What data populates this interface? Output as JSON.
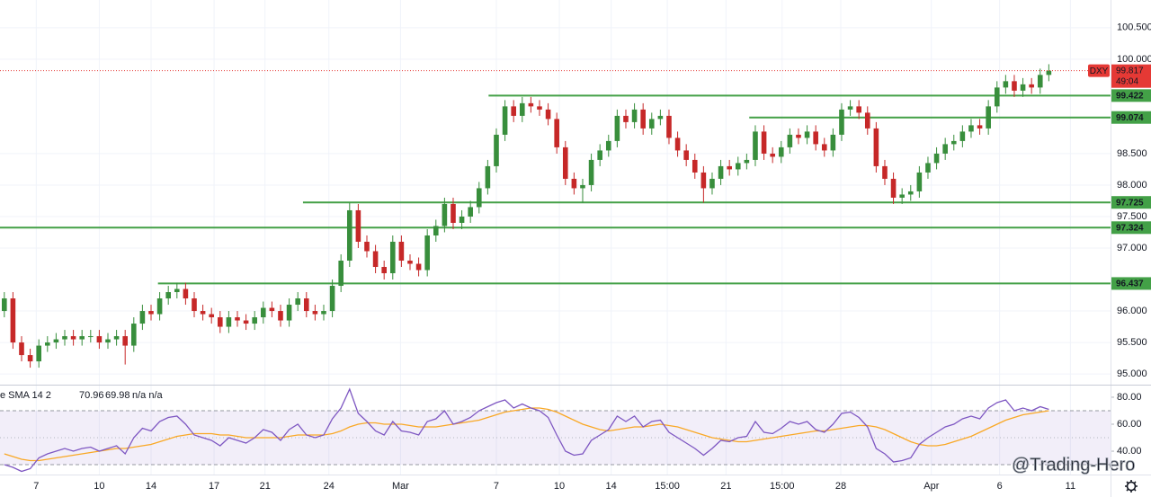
{
  "chart_data": {
    "type": "candlestick",
    "symbol": "DXY",
    "countdown": "49:04",
    "watermark": "@Trading-Hero",
    "up_color": "#388e3c",
    "down_color": "#c62828",
    "open": [
      96.0,
      96.2,
      95.5,
      95.3,
      95.2,
      95.45,
      95.5,
      95.55,
      95.6,
      95.55,
      95.6,
      95.6,
      95.5,
      95.55,
      95.6,
      95.45,
      95.8,
      96.0,
      95.95,
      96.2,
      96.3,
      96.35,
      96.2,
      96.0,
      95.95,
      95.9,
      95.75,
      95.9,
      95.85,
      95.8,
      95.9,
      96.05,
      96.0,
      95.85,
      96.1,
      96.2,
      96.0,
      95.95,
      96.0,
      96.4,
      96.8,
      97.6,
      97.1,
      96.95,
      96.7,
      96.6,
      97.1,
      96.8,
      96.75,
      96.65,
      97.2,
      97.35,
      97.7,
      97.4,
      97.5,
      97.65,
      97.95,
      98.3,
      98.8,
      99.25,
      99.1,
      99.3,
      99.25,
      99.2,
      99.05,
      98.6,
      98.1,
      97.95,
      98.0,
      98.4,
      98.55,
      98.7,
      99.1,
      99.0,
      99.2,
      98.9,
      99.05,
      99.1,
      98.75,
      98.55,
      98.4,
      98.2,
      97.95,
      98.1,
      98.3,
      98.25,
      98.35,
      98.4,
      98.85,
      98.5,
      98.45,
      98.6,
      98.8,
      98.75,
      98.85,
      98.65,
      98.55,
      98.8,
      99.2,
      99.25,
      99.15,
      98.9,
      98.3,
      98.1,
      97.8,
      97.85,
      97.9,
      98.2,
      98.35,
      98.5,
      98.65,
      98.7,
      98.85,
      98.95,
      98.9,
      99.25,
      99.55,
      99.65,
      99.5,
      99.6,
      99.55,
      99.75
    ],
    "high": [
      96.3,
      96.3,
      95.6,
      95.4,
      95.55,
      95.6,
      95.65,
      95.7,
      95.7,
      95.7,
      95.7,
      95.7,
      95.65,
      95.7,
      95.7,
      95.9,
      96.1,
      96.1,
      96.3,
      96.4,
      96.45,
      96.45,
      96.3,
      96.1,
      96.05,
      96.0,
      96.0,
      96.0,
      95.95,
      96.0,
      96.15,
      96.15,
      96.1,
      96.2,
      96.3,
      96.3,
      96.1,
      96.1,
      96.5,
      96.9,
      97.72,
      97.7,
      97.2,
      97.05,
      96.8,
      97.2,
      97.2,
      96.9,
      96.85,
      97.3,
      97.45,
      97.8,
      97.8,
      97.6,
      97.75,
      98.05,
      98.4,
      98.9,
      99.35,
      99.35,
      99.4,
      99.4,
      99.35,
      99.3,
      99.15,
      98.7,
      98.2,
      98.1,
      98.5,
      98.65,
      98.8,
      99.2,
      99.2,
      99.3,
      99.3,
      99.15,
      99.2,
      99.2,
      98.85,
      98.65,
      98.5,
      98.3,
      98.2,
      98.4,
      98.4,
      98.45,
      98.5,
      98.95,
      98.95,
      98.6,
      98.7,
      98.9,
      98.9,
      98.95,
      98.95,
      98.75,
      98.9,
      99.3,
      99.35,
      99.35,
      99.25,
      99.0,
      98.4,
      98.2,
      97.95,
      98.0,
      98.3,
      98.45,
      98.6,
      98.75,
      98.8,
      98.95,
      99.05,
      99.05,
      99.35,
      99.65,
      99.75,
      99.75,
      99.7,
      99.7,
      99.85,
      99.92
    ],
    "low": [
      95.9,
      95.4,
      95.2,
      95.1,
      95.1,
      95.35,
      95.4,
      95.45,
      95.45,
      95.45,
      95.5,
      95.4,
      95.4,
      95.45,
      95.15,
      95.35,
      95.7,
      95.85,
      95.85,
      96.1,
      96.2,
      96.1,
      95.9,
      95.85,
      95.8,
      95.65,
      95.65,
      95.75,
      95.7,
      95.7,
      95.8,
      95.9,
      95.75,
      95.75,
      96.0,
      95.9,
      95.85,
      95.85,
      95.9,
      96.3,
      96.7,
      97.0,
      96.85,
      96.6,
      96.5,
      96.5,
      96.7,
      96.65,
      96.55,
      96.55,
      97.1,
      97.25,
      97.3,
      97.3,
      97.4,
      97.55,
      97.85,
      98.2,
      98.7,
      99.0,
      99.0,
      99.15,
      99.1,
      98.95,
      98.5,
      98.0,
      97.85,
      97.72,
      97.9,
      98.3,
      98.45,
      98.6,
      98.9,
      98.9,
      98.8,
      98.8,
      98.95,
      98.65,
      98.45,
      98.3,
      98.1,
      97.72,
      97.85,
      98.0,
      98.15,
      98.15,
      98.25,
      98.3,
      98.4,
      98.35,
      98.35,
      98.5,
      98.65,
      98.65,
      98.55,
      98.45,
      98.45,
      98.7,
      99.1,
      99.05,
      98.8,
      98.2,
      98.0,
      97.7,
      97.7,
      97.75,
      97.8,
      98.1,
      98.25,
      98.4,
      98.55,
      98.6,
      98.75,
      98.8,
      98.8,
      99.15,
      99.45,
      99.4,
      99.4,
      99.45,
      99.45,
      99.65
    ],
    "close": [
      96.2,
      95.5,
      95.3,
      95.2,
      95.45,
      95.5,
      95.55,
      95.6,
      95.55,
      95.6,
      95.6,
      95.5,
      95.55,
      95.6,
      95.45,
      95.8,
      96.0,
      95.95,
      96.2,
      96.3,
      96.35,
      96.2,
      96.0,
      95.95,
      95.9,
      95.75,
      95.9,
      95.85,
      95.8,
      95.9,
      96.05,
      96.0,
      95.85,
      96.1,
      96.2,
      96.0,
      95.95,
      96.0,
      96.4,
      96.8,
      97.6,
      97.1,
      96.95,
      96.7,
      96.6,
      97.1,
      96.8,
      96.75,
      96.65,
      97.2,
      97.35,
      97.7,
      97.4,
      97.5,
      97.65,
      97.95,
      98.3,
      98.8,
      99.25,
      99.1,
      99.3,
      99.25,
      99.2,
      99.05,
      98.6,
      98.1,
      97.95,
      98.0,
      98.4,
      98.55,
      98.7,
      99.1,
      99.0,
      99.2,
      98.9,
      99.05,
      99.1,
      98.75,
      98.55,
      98.4,
      98.2,
      97.95,
      98.1,
      98.3,
      98.25,
      98.35,
      98.4,
      98.85,
      98.5,
      98.45,
      98.6,
      98.8,
      98.75,
      98.85,
      98.65,
      98.55,
      98.8,
      99.2,
      99.25,
      99.15,
      98.9,
      98.3,
      98.1,
      97.8,
      97.85,
      97.9,
      98.2,
      98.35,
      98.5,
      98.65,
      98.7,
      98.85,
      98.95,
      98.9,
      99.25,
      99.55,
      99.65,
      99.5,
      99.6,
      99.55,
      99.75,
      99.817
    ],
    "xlim": [
      -0.5,
      128.15
    ],
    "xticks": [
      {
        "value": 3.7,
        "label": "7"
      },
      {
        "value": 11,
        "label": "10"
      },
      {
        "value": 17,
        "label": "14"
      },
      {
        "value": 24.3,
        "label": "17"
      },
      {
        "value": 30.2,
        "label": "21"
      },
      {
        "value": 37.6,
        "label": "24"
      },
      {
        "value": 45.9,
        "label": "Mar"
      },
      {
        "value": 57,
        "label": "7"
      },
      {
        "value": 64.3,
        "label": "10"
      },
      {
        "value": 70.3,
        "label": "14"
      },
      {
        "value": 76.8,
        "label": "15:00"
      },
      {
        "value": 83.6,
        "label": "21"
      },
      {
        "value": 90.1,
        "label": "15:00"
      },
      {
        "value": 96.9,
        "label": "28"
      },
      {
        "value": 107.4,
        "label": "Apr"
      },
      {
        "value": 115.3,
        "label": "6"
      },
      {
        "value": 123.5,
        "label": "11"
      }
    ],
    "ylim": [
      94.83,
      100.94
    ],
    "yticks": [
      {
        "value": 95,
        "label": "95.000"
      },
      {
        "value": 95.5,
        "label": "95.500"
      },
      {
        "value": 96,
        "label": "96.000"
      },
      {
        "value": 97,
        "label": "97.000"
      },
      {
        "value": 97.5,
        "label": "97.500"
      },
      {
        "value": 98,
        "label": "98.000"
      },
      {
        "value": 98.5,
        "label": "98.500"
      },
      {
        "value": 100,
        "label": "100.000"
      },
      {
        "value": 100.5,
        "label": "100.500"
      }
    ],
    "grid": true,
    "last_price": 99.817,
    "last_color": "#e53935",
    "level_color": "#43a047",
    "levels": [
      {
        "value": 99.422,
        "start": 56.1
      },
      {
        "value": 99.074,
        "start": 86.3
      },
      {
        "value": 97.725,
        "start": 34.6
      },
      {
        "value": 97.324,
        "start": -0.5
      },
      {
        "value": 96.437,
        "start": 17.8
      }
    ],
    "indicator": {
      "type": "line",
      "title": "e SMA 14 2",
      "na": "n/a n/a",
      "ylim": [
        22.7,
        89.3
      ],
      "yticks": [
        {
          "value": 80,
          "label": "80.00"
        },
        {
          "value": 60,
          "label": "60.00"
        },
        {
          "value": 40,
          "label": "40.00"
        }
      ],
      "band": [
        30,
        70
      ],
      "mid": 50,
      "series": [
        {
          "color": "#7e57c2",
          "values": [
            30,
            28,
            25,
            27,
            35,
            38,
            40,
            42,
            40,
            42,
            43,
            40,
            42,
            44,
            38,
            50,
            57,
            55,
            62,
            65,
            66,
            60,
            52,
            50,
            48,
            44,
            50,
            48,
            46,
            50,
            56,
            54,
            48,
            56,
            60,
            52,
            50,
            52,
            64,
            72,
            86,
            68,
            62,
            55,
            52,
            62,
            55,
            54,
            52,
            62,
            64,
            70,
            60,
            62,
            65,
            70,
            73,
            76,
            78,
            72,
            75,
            72,
            70,
            65,
            52,
            40,
            37,
            38,
            48,
            52,
            56,
            66,
            62,
            66,
            58,
            62,
            63,
            54,
            50,
            46,
            42,
            37,
            42,
            48,
            47,
            50,
            51,
            62,
            54,
            53,
            57,
            62,
            60,
            62,
            56,
            54,
            60,
            68,
            69,
            65,
            58,
            42,
            38,
            32,
            33,
            35,
            45,
            50,
            54,
            58,
            60,
            64,
            66,
            64,
            72,
            76,
            78,
            70,
            72,
            70,
            73,
            70.96
          ]
        },
        {
          "color": "#f9a825",
          "values": [
            38,
            36,
            34,
            33,
            33,
            34,
            35,
            36,
            37,
            38,
            39,
            40,
            41,
            42,
            42,
            43,
            44,
            45,
            47,
            49,
            51,
            52,
            53,
            53,
            53,
            52,
            52,
            51,
            50,
            50,
            50,
            50,
            50,
            51,
            52,
            52,
            52,
            52,
            53,
            55,
            58,
            60,
            61,
            61,
            60,
            60,
            60,
            59,
            58,
            58,
            58,
            59,
            60,
            61,
            62,
            63,
            65,
            67,
            69,
            70,
            71,
            72,
            72,
            71,
            69,
            66,
            63,
            60,
            58,
            56,
            55,
            56,
            57,
            58,
            58,
            59,
            60,
            59,
            58,
            56,
            54,
            52,
            50,
            49,
            48,
            47,
            47,
            48,
            49,
            50,
            51,
            52,
            53,
            54,
            55,
            55,
            56,
            57,
            58,
            59,
            59,
            58,
            56,
            53,
            50,
            47,
            45,
            44,
            44,
            45,
            47,
            49,
            51,
            54,
            57,
            60,
            63,
            65,
            67,
            68,
            69,
            69.98
          ]
        }
      ]
    }
  }
}
